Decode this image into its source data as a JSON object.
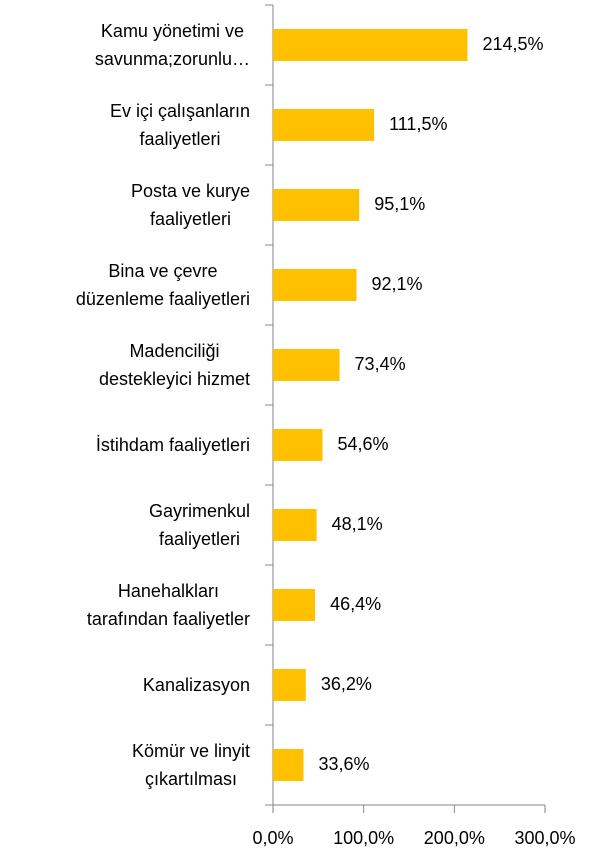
{
  "chart_data": {
    "type": "hbar",
    "categories": [
      "Kamu yönetimi ve\nsavunma;zorunlu…",
      "Ev içi çalışanların\nfaaliyetleri",
      "Posta ve kurye\nfaaliyetleri",
      "Bina ve çevre\ndüzenleme faaliyetleri",
      "Madenciliği\ndestekleyici hizmet",
      "İstihdam faaliyetleri",
      "Gayrimenkul\nfaaliyetleri",
      "Hanehalkları\ntarafından faaliyetler",
      "Kanalizasyon",
      "Kömür ve linyit\nçıkartılması"
    ],
    "values": [
      214.5,
      111.5,
      95.1,
      92.1,
      73.4,
      54.6,
      48.1,
      46.4,
      36.2,
      33.6
    ],
    "value_labels": [
      "214,5%",
      "111,5%",
      "95,1%",
      "92,1%",
      "73,4%",
      "54,6%",
      "48,1%",
      "46,4%",
      "36,2%",
      "33,6%"
    ],
    "color": "#ffc000",
    "xlim": [
      0,
      300
    ],
    "xticks": [
      {
        "value": 0,
        "label": "0,0%"
      },
      {
        "value": 100,
        "label": "100,0%"
      },
      {
        "value": 200,
        "label": "200,0%"
      },
      {
        "value": 300,
        "label": "300,0%"
      }
    ]
  }
}
